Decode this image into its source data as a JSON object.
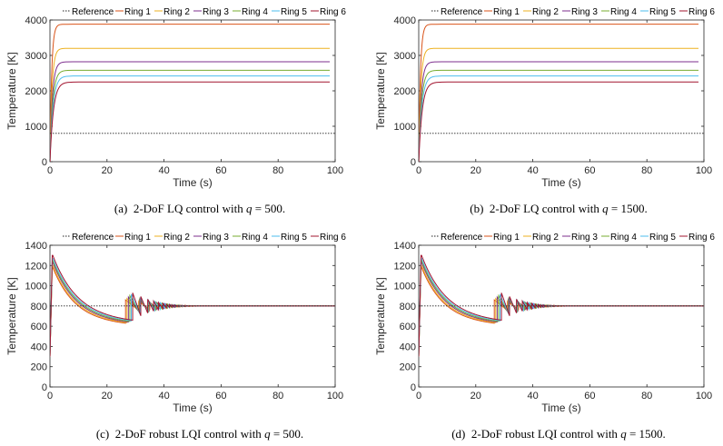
{
  "colors": {
    "reference": "#222222",
    "ring1": "#d95319",
    "ring2": "#edb120",
    "ring3": "#7e2f8e",
    "ring4": "#77ac30",
    "ring5": "#4dbeee",
    "ring6": "#a2142f"
  },
  "captions": [
    {
      "label": "(a)",
      "pre": "2-DoF LQ control with ",
      "var": "q",
      "post": " = 500."
    },
    {
      "label": "(b)",
      "pre": "2-DoF LQ control with ",
      "var": "q",
      "post": " = 1500."
    },
    {
      "label": "(c)",
      "pre": "2-DoF robust LQI control with ",
      "var": "q",
      "post": " = 500."
    },
    {
      "label": "(d)",
      "pre": "2-DoF robust LQI control with ",
      "var": "q",
      "post": " = 1500."
    }
  ],
  "chart_data": [
    {
      "type": "line",
      "title": "",
      "xlabel": "Time (s)",
      "ylabel": "Temperature [K]",
      "xlim": [
        0,
        100
      ],
      "ylim": [
        0,
        4000
      ],
      "xticks": [
        "0",
        "20",
        "40",
        "60",
        "80",
        "100"
      ],
      "yticks": [
        "0",
        "1000",
        "2000",
        "3000",
        "4000"
      ],
      "legend": [
        "Reference",
        "Ring 1",
        "Ring 2",
        "Ring 3",
        "Ring 4",
        "Ring 5",
        "Ring 6"
      ],
      "kind": "lq",
      "reference": 800,
      "steady_states": [
        3880,
        3200,
        2820,
        2580,
        2420,
        2250
      ]
    },
    {
      "type": "line",
      "title": "",
      "xlabel": "Time (s)",
      "ylabel": "Temperature [K]",
      "xlim": [
        0,
        100
      ],
      "ylim": [
        0,
        4000
      ],
      "xticks": [
        "0",
        "20",
        "40",
        "60",
        "80",
        "100"
      ],
      "yticks": [
        "0",
        "1000",
        "2000",
        "3000",
        "4000"
      ],
      "legend": [
        "Reference",
        "Ring 1",
        "Ring 2",
        "Ring 3",
        "Ring 4",
        "Ring 5",
        "Ring 6"
      ],
      "kind": "lq",
      "reference": 800,
      "steady_states": [
        3880,
        3200,
        2820,
        2580,
        2420,
        2250
      ]
    },
    {
      "type": "line",
      "title": "",
      "xlabel": "Time (s)",
      "ylabel": "Temperature [K]",
      "xlim": [
        0,
        100
      ],
      "ylim": [
        0,
        1400
      ],
      "xticks": [
        "0",
        "20",
        "40",
        "60",
        "80",
        "100"
      ],
      "yticks": [
        "0",
        "200",
        "400",
        "600",
        "800",
        "1000",
        "1200",
        "1400"
      ],
      "legend": [
        "Reference",
        "Ring 1",
        "Ring 2",
        "Ring 3",
        "Ring 4",
        "Ring 5",
        "Ring 6"
      ],
      "kind": "lqi",
      "reference": 800,
      "peaks": [
        1180,
        1200,
        1230,
        1250,
        1270,
        1300
      ],
      "min_value": 630,
      "jump_times": [
        26.5,
        27,
        27.5,
        28,
        28.5,
        29
      ],
      "settle_time": 62
    },
    {
      "type": "line",
      "title": "",
      "xlabel": "Time (s)",
      "ylabel": "Temperature [K]",
      "xlim": [
        0,
        100
      ],
      "ylim": [
        0,
        1400
      ],
      "xticks": [
        "0",
        "20",
        "40",
        "60",
        "80",
        "100"
      ],
      "yticks": [
        "0",
        "200",
        "400",
        "600",
        "800",
        "1000",
        "1200",
        "1400"
      ],
      "legend": [
        "Reference",
        "Ring 1",
        "Ring 2",
        "Ring 3",
        "Ring 4",
        "Ring 5",
        "Ring 6"
      ],
      "kind": "lqi",
      "reference": 800,
      "peaks": [
        1180,
        1200,
        1230,
        1250,
        1270,
        1300
      ],
      "min_value": 630,
      "jump_times": [
        26.5,
        27,
        27.5,
        28,
        28.5,
        29
      ],
      "settle_time": 62
    }
  ]
}
